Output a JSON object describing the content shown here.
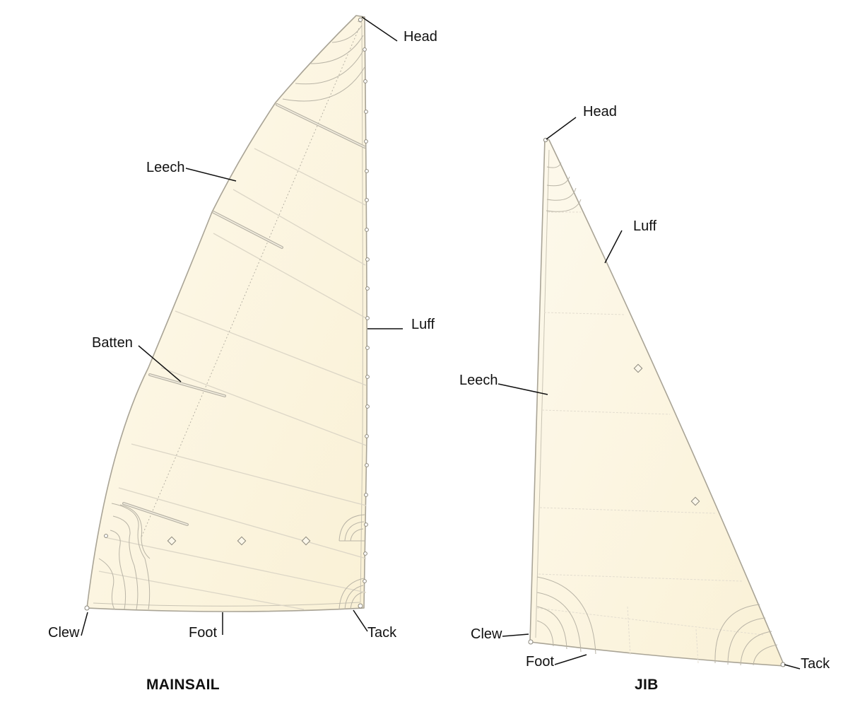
{
  "mainsail": {
    "title": "MAINSAIL",
    "labels": {
      "head": "Head",
      "leech": "Leech",
      "luff": "Luff",
      "batten": "Batten",
      "clew": "Clew",
      "foot": "Foot",
      "tack": "Tack"
    }
  },
  "jib": {
    "title": "JIB",
    "labels": {
      "head": "Head",
      "luff": "Luff",
      "leech": "Leech",
      "clew": "Clew",
      "foot": "Foot",
      "tack": "Tack"
    }
  },
  "colors": {
    "sail_fill_light": "#fdf9ec",
    "sail_fill_warm": "#faf1d6",
    "sail_edge": "#a9a496",
    "label_text": "#111111"
  }
}
